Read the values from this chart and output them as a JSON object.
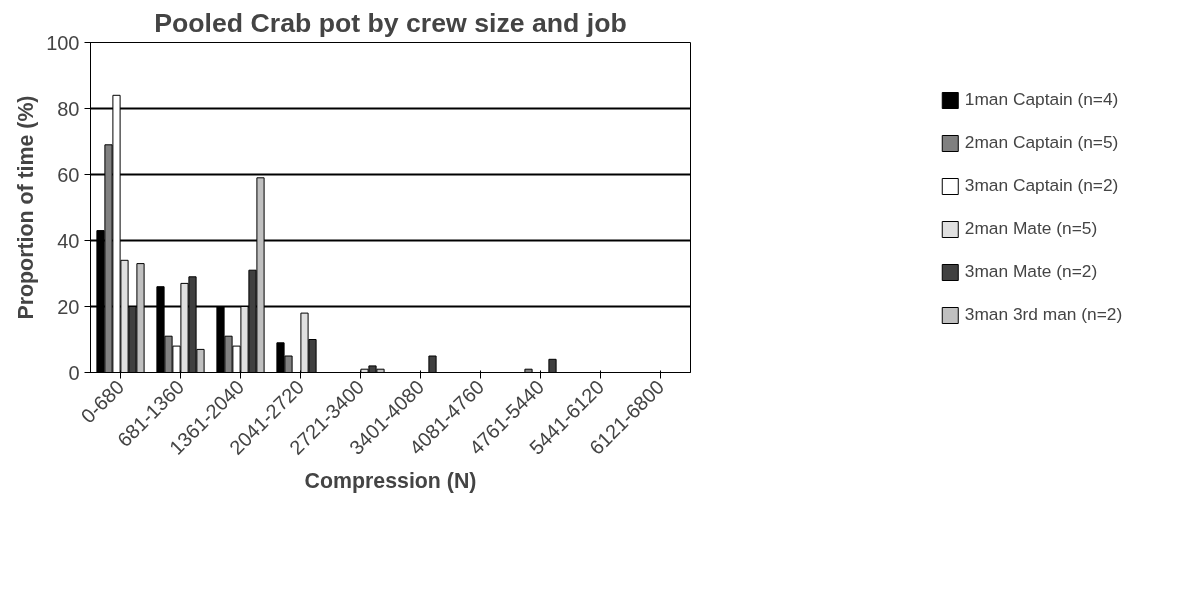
{
  "chart_data": {
    "type": "bar",
    "title": "Pooled Crab pot by crew size and job",
    "xlabel": "Compression (N)",
    "ylabel": "Proportion of time (%)",
    "categories": [
      "0-680",
      "681-1360",
      "1361-2040",
      "2041-2720",
      "2721-3400",
      "3401-4080",
      "4081-4760",
      "4761-5440",
      "5441-6120",
      "6121-6800"
    ],
    "series": [
      {
        "name": "1man Captain (n=4)",
        "color": "#000000",
        "values": [
          43,
          26,
          20,
          9,
          0,
          0,
          0,
          0,
          0,
          0
        ]
      },
      {
        "name": "2man Captain (n=5)",
        "color": "#808080",
        "values": [
          69,
          11,
          11,
          5,
          0,
          0,
          0,
          1,
          0,
          0
        ]
      },
      {
        "name": "3man Captain (n=2)",
        "color": "#ffffff",
        "values": [
          84,
          8,
          8,
          0,
          0,
          0,
          0,
          0,
          0,
          0
        ]
      },
      {
        "name": "2man Mate (n=5)",
        "color": "#e0e0e0",
        "values": [
          34,
          27,
          20,
          18,
          1,
          0,
          0,
          0,
          0,
          0
        ]
      },
      {
        "name": "3man Mate (n=2)",
        "color": "#404040",
        "values": [
          20,
          29,
          31,
          10,
          2,
          5,
          0,
          4,
          0,
          0
        ]
      },
      {
        "name": "3man 3rd man (n=2)",
        "color": "#c0c0c0",
        "values": [
          33,
          7,
          59,
          0,
          1,
          0,
          0,
          0,
          0,
          0
        ]
      }
    ],
    "ylim": [
      0,
      100
    ],
    "yticks": [
      0,
      20,
      40,
      60,
      80,
      100
    ],
    "grid": "y",
    "legend": "right"
  }
}
